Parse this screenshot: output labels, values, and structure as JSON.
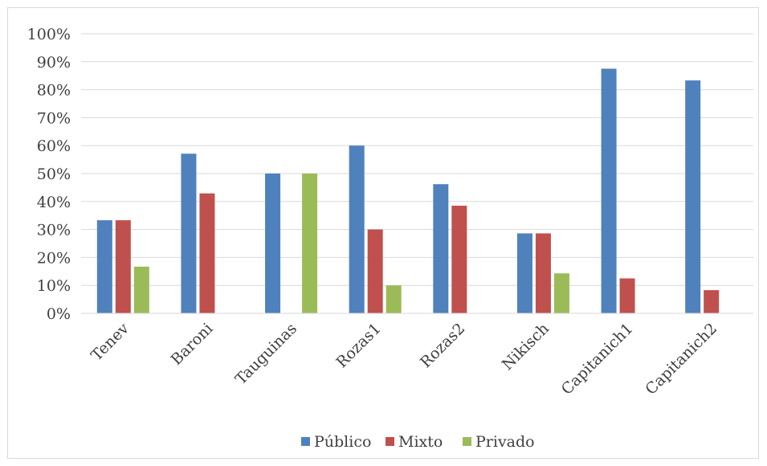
{
  "chart_data": {
    "type": "bar",
    "categories": [
      "Tenev",
      "Baroni",
      "Tauguinas",
      "Rozas1",
      "Rozas2",
      "Nikisch",
      "Capitanich1",
      "Capitanich2"
    ],
    "series": [
      {
        "name": "Público",
        "color": "#4f81bd",
        "values": [
          33.3,
          57.1,
          50.0,
          60.0,
          46.2,
          28.6,
          87.5,
          83.3
        ]
      },
      {
        "name": "Mixto",
        "color": "#c0504d",
        "values": [
          33.3,
          42.9,
          0,
          30.0,
          38.5,
          28.6,
          12.5,
          8.3
        ]
      },
      {
        "name": "Privado",
        "color": "#9bbb59",
        "values": [
          16.7,
          0,
          50.0,
          10.0,
          0,
          14.3,
          0,
          0
        ]
      }
    ],
    "ylim": [
      0,
      100
    ],
    "yticks": [
      "0%",
      "10%",
      "20%",
      "30%",
      "40%",
      "50%",
      "60%",
      "70%",
      "80%",
      "90%",
      "100%"
    ],
    "grid": true,
    "legend_position": "bottom"
  }
}
